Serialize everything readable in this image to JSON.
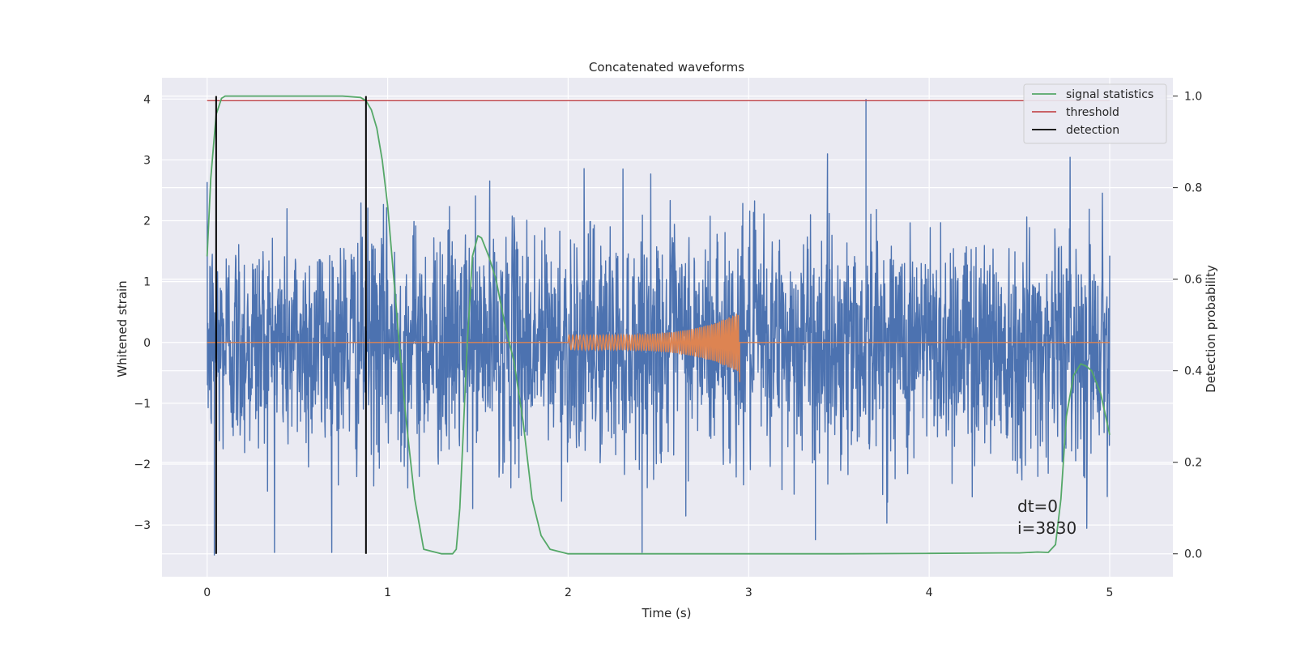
{
  "chart_data": {
    "type": "line",
    "title": "Concatenated waveforms",
    "xlabel": "Time (s)",
    "ylabel": "Whitened strain",
    "ylabel_right": "Detection probability",
    "xlim": [
      -0.25,
      5.35
    ],
    "ylim": [
      -3.85,
      4.35
    ],
    "ylim_right": [
      -0.05,
      1.04
    ],
    "x_ticks": [
      0,
      1,
      2,
      3,
      4,
      5
    ],
    "x_tick_labels": [
      "0",
      "1",
      "2",
      "3",
      "4",
      "5"
    ],
    "y_ticks": [
      -3,
      -2,
      -1,
      0,
      1,
      2,
      3,
      4
    ],
    "y_tick_labels": [
      "−3",
      "−2",
      "−1",
      "0",
      "1",
      "2",
      "3",
      "4"
    ],
    "y_right_ticks": [
      0.0,
      0.2,
      0.4,
      0.6,
      0.8,
      1.0
    ],
    "y_right_tick_labels": [
      "0.0",
      "0.2",
      "0.4",
      "0.6",
      "0.8",
      "1.0"
    ],
    "grid": true,
    "legend_position": "top-right",
    "legend": [
      {
        "label": "signal statistics",
        "color": "#55a868"
      },
      {
        "label": "threshold",
        "color": "#c44e52"
      },
      {
        "label": "detection",
        "color": "#000000"
      }
    ],
    "series": [
      {
        "color": "#4c72b0",
        "axis": "left",
        "description_hint": "whitened noise strain, x 0 to 5, amplitude roughly -3.5 to 4",
        "x_range": [
          0,
          5
        ],
        "noise_sigma": 0.95,
        "notable_peaks": [
          {
            "x": 3.65,
            "y": 4.0
          },
          {
            "x": 0.04,
            "y": -3.5
          },
          {
            "x": 3.37,
            "y": -3.25
          }
        ]
      },
      {
        "color": "#dd8452",
        "axis": "left",
        "x_range": [
          0,
          5
        ],
        "chirp": {
          "start": 2.0,
          "end": 2.95,
          "start_amplitude": 0.12,
          "end_amplitude": 0.5,
          "min_at_end": -0.65
        }
      },
      {
        "name": "signal statistics",
        "color": "#55a868",
        "axis": "right",
        "x": [
          0.0,
          0.02,
          0.05,
          0.08,
          0.1,
          0.15,
          0.3,
          0.5,
          0.75,
          0.85,
          0.88,
          0.91,
          0.94,
          0.97,
          1.0,
          1.03,
          1.06,
          1.1,
          1.15,
          1.2,
          1.3,
          1.36,
          1.38,
          1.4,
          1.44,
          1.47,
          1.5,
          1.52,
          1.56,
          1.6,
          1.65,
          1.7,
          1.75,
          1.8,
          1.85,
          1.9,
          2.0,
          2.5,
          3.0,
          3.5,
          4.0,
          4.4,
          4.5,
          4.6,
          4.66,
          4.7,
          4.73,
          4.76,
          4.8,
          4.84,
          4.87,
          4.9,
          4.95,
          5.0
        ],
        "y": [
          0.65,
          0.82,
          0.96,
          0.995,
          1.0,
          1.0,
          1.0,
          1.0,
          1.0,
          0.997,
          0.99,
          0.97,
          0.93,
          0.86,
          0.76,
          0.62,
          0.48,
          0.3,
          0.12,
          0.01,
          0.0,
          0.0,
          0.01,
          0.1,
          0.45,
          0.65,
          0.695,
          0.69,
          0.65,
          0.6,
          0.5,
          0.42,
          0.29,
          0.12,
          0.04,
          0.01,
          0.0,
          0.0,
          0.0,
          0.0,
          0.001,
          0.002,
          0.002,
          0.004,
          0.003,
          0.02,
          0.12,
          0.3,
          0.39,
          0.415,
          0.41,
          0.4,
          0.35,
          0.26
        ]
      },
      {
        "name": "threshold",
        "color": "#c44e52",
        "axis": "right",
        "x": [
          0,
          5
        ],
        "y": [
          0.99,
          0.99
        ]
      },
      {
        "name": "detection",
        "color": "#000000",
        "axis": "right",
        "vlines": [
          0.05,
          0.88
        ],
        "y_range": [
          0.0,
          1.0
        ]
      }
    ],
    "annotations": [
      "dt=0",
      "i=3830"
    ]
  }
}
